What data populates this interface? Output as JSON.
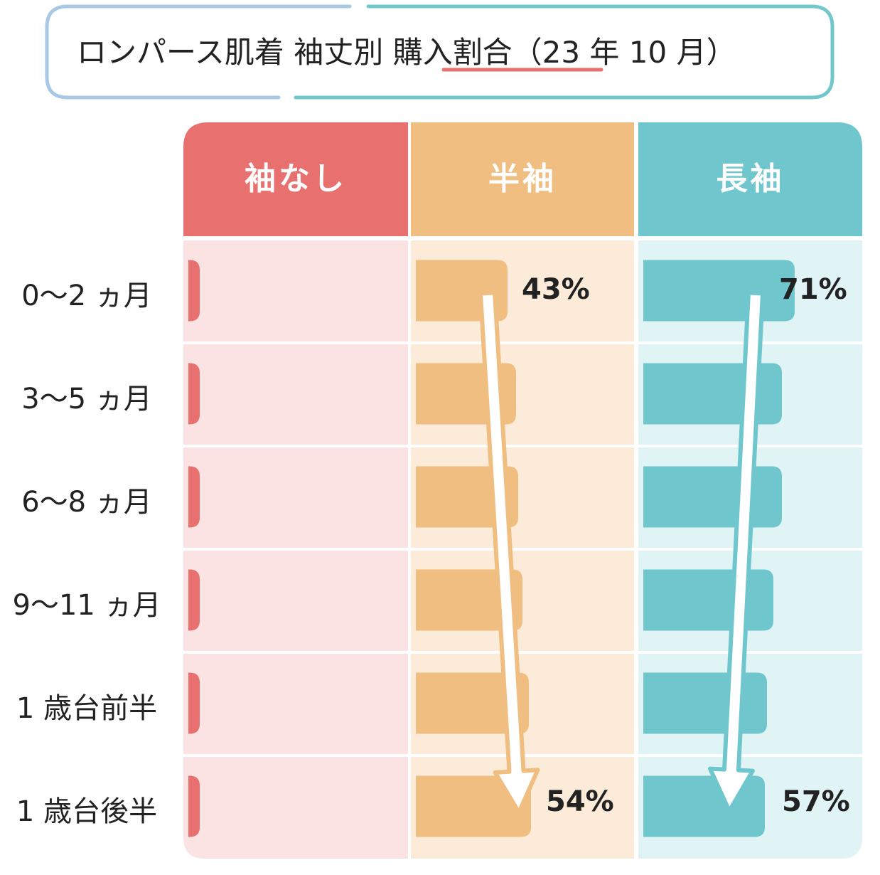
{
  "title": {
    "prefix": "ロンパース肌着 袖丈別 ",
    "highlight": "購入割合",
    "suffix": "（23 年 10 月）"
  },
  "colors": {
    "none_dark": "#E8706E",
    "none_light": "#FBE3E3",
    "short_dark": "#EFBE80",
    "short_light": "#FBEBD8",
    "long_dark": "#6FC7CD",
    "long_light": "#E0F3F5",
    "frame_blue": "#A9C8E6",
    "frame_teal": "#72C7CC",
    "underline": "#E8706E"
  },
  "chart_data": {
    "type": "bar",
    "categories": [
      "0～2 ヵ月",
      "3～5 ヵ月",
      "6～8 ヵ月",
      "9～11 ヵ月",
      "1 歳台前半",
      "1 歳台後半"
    ],
    "series": [
      {
        "name": "袖なし",
        "values": [
          2,
          2,
          2,
          2,
          2,
          2
        ]
      },
      {
        "name": "半袖",
        "values": [
          43,
          47,
          48,
          50,
          53,
          54
        ]
      },
      {
        "name": "長袖",
        "values": [
          71,
          65,
          65,
          61,
          58,
          57
        ]
      }
    ],
    "value_labels": {
      "short_first": "43%",
      "short_last": "54%",
      "long_first": "71%",
      "long_last": "57%"
    },
    "ylim": [
      0,
      100
    ],
    "legend": "column-headers",
    "grid": false
  }
}
